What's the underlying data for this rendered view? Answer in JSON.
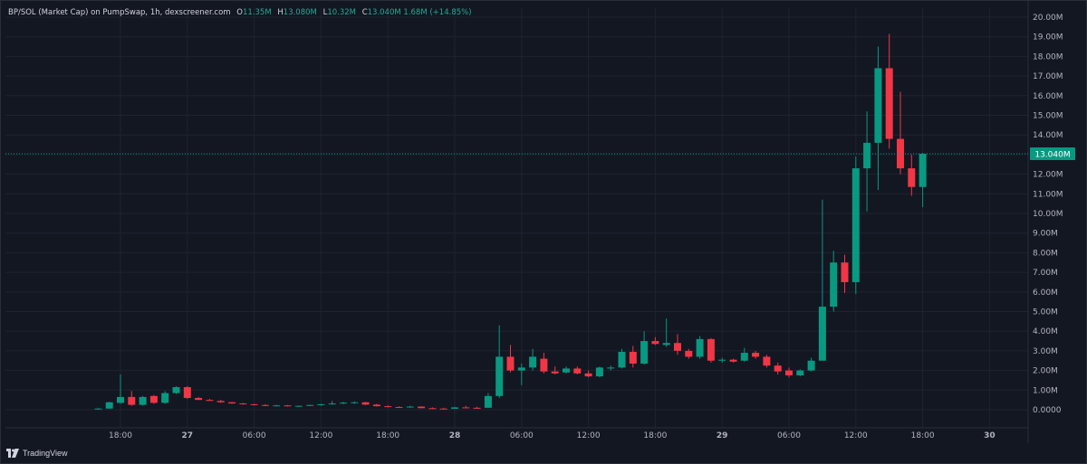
{
  "legend": {
    "symbol": "BP/SOL (Market Cap) on PumpSwap, 1h, dexscreener.com",
    "o_label": "O",
    "o_value": "11.35M",
    "h_label": "H",
    "h_value": "13.080M",
    "l_label": "L",
    "l_value": "10.32M",
    "c_label": "C",
    "c_value": "13.040M",
    "change": "1.68M (+14.85%)"
  },
  "brand": {
    "name": "TradingView"
  },
  "price_badge": "13.040M",
  "colors": {
    "up": "#089981",
    "down": "#f23645",
    "background": "#131722",
    "badge": "#089981"
  },
  "chart_data": {
    "type": "candlestick",
    "interval": "1h",
    "y_unit": "market cap",
    "ylim": [
      0,
      20
    ],
    "y_ticks": [
      {
        "v": 20,
        "label": "20.00M"
      },
      {
        "v": 19,
        "label": "19.00M"
      },
      {
        "v": 18,
        "label": "18.00M"
      },
      {
        "v": 17,
        "label": "17.00M"
      },
      {
        "v": 16,
        "label": "16.00M"
      },
      {
        "v": 15,
        "label": "15.00M"
      },
      {
        "v": 14,
        "label": "14.00M"
      },
      {
        "v": 13,
        "label": "13.00M"
      },
      {
        "v": 12,
        "label": "12.00M"
      },
      {
        "v": 11,
        "label": "11.00M"
      },
      {
        "v": 10,
        "label": "10.00M"
      },
      {
        "v": 9,
        "label": "9.00M"
      },
      {
        "v": 8,
        "label": "8.00M"
      },
      {
        "v": 7,
        "label": "7.00M"
      },
      {
        "v": 6,
        "label": "6.00M"
      },
      {
        "v": 5,
        "label": "5.00M"
      },
      {
        "v": 4,
        "label": "4.00M"
      },
      {
        "v": 3,
        "label": "3.00M"
      },
      {
        "v": 2,
        "label": "2.00M"
      },
      {
        "v": 1,
        "label": "1.00M"
      },
      {
        "v": 0,
        "label": "0.0000"
      }
    ],
    "x_ticks": [
      {
        "t": 0,
        "label": "18:00",
        "bold": false
      },
      {
        "t": 6,
        "label": "27",
        "bold": true
      },
      {
        "t": 12,
        "label": "06:00",
        "bold": false
      },
      {
        "t": 18,
        "label": "12:00",
        "bold": false
      },
      {
        "t": 24,
        "label": "18:00",
        "bold": false
      },
      {
        "t": 30,
        "label": "28",
        "bold": true
      },
      {
        "t": 36,
        "label": "06:00",
        "bold": false
      },
      {
        "t": 42,
        "label": "12:00",
        "bold": false
      },
      {
        "t": 48,
        "label": "18:00",
        "bold": false
      },
      {
        "t": 54,
        "label": "29",
        "bold": true
      },
      {
        "t": 60,
        "label": "06:00",
        "bold": false
      },
      {
        "t": 66,
        "label": "12:00",
        "bold": false
      },
      {
        "t": 72,
        "label": "18:00",
        "bold": false
      },
      {
        "t": 78,
        "label": "30",
        "bold": true
      }
    ],
    "x_range": [
      -3,
      84
    ],
    "last_close": 13.04,
    "candles": [
      {
        "t": -2,
        "o": 0.05,
        "h": 0.1,
        "l": 0.04,
        "c": 0.06
      },
      {
        "t": -1,
        "o": 0.06,
        "h": 0.4,
        "l": 0.05,
        "c": 0.38
      },
      {
        "t": 0,
        "o": 0.35,
        "h": 1.8,
        "l": 0.3,
        "c": 0.65
      },
      {
        "t": 1,
        "o": 0.65,
        "h": 0.95,
        "l": 0.2,
        "c": 0.25
      },
      {
        "t": 2,
        "o": 0.25,
        "h": 0.7,
        "l": 0.2,
        "c": 0.65
      },
      {
        "t": 3,
        "o": 0.7,
        "h": 0.75,
        "l": 0.3,
        "c": 0.35
      },
      {
        "t": 4,
        "o": 0.35,
        "h": 0.95,
        "l": 0.3,
        "c": 0.85
      },
      {
        "t": 5,
        "o": 0.85,
        "h": 1.2,
        "l": 0.8,
        "c": 1.15
      },
      {
        "t": 6,
        "o": 1.15,
        "h": 1.2,
        "l": 0.55,
        "c": 0.6
      },
      {
        "t": 7,
        "o": 0.6,
        "h": 0.65,
        "l": 0.5,
        "c": 0.5
      },
      {
        "t": 8,
        "o": 0.5,
        "h": 0.55,
        "l": 0.45,
        "c": 0.45
      },
      {
        "t": 9,
        "o": 0.45,
        "h": 0.5,
        "l": 0.35,
        "c": 0.38
      },
      {
        "t": 10,
        "o": 0.38,
        "h": 0.4,
        "l": 0.3,
        "c": 0.32
      },
      {
        "t": 11,
        "o": 0.32,
        "h": 0.35,
        "l": 0.26,
        "c": 0.28
      },
      {
        "t": 12,
        "o": 0.28,
        "h": 0.3,
        "l": 0.22,
        "c": 0.24
      },
      {
        "t": 13,
        "o": 0.24,
        "h": 0.28,
        "l": 0.18,
        "c": 0.2
      },
      {
        "t": 14,
        "o": 0.2,
        "h": 0.25,
        "l": 0.17,
        "c": 0.22
      },
      {
        "t": 15,
        "o": 0.22,
        "h": 0.24,
        "l": 0.16,
        "c": 0.18
      },
      {
        "t": 16,
        "o": 0.18,
        "h": 0.22,
        "l": 0.15,
        "c": 0.2
      },
      {
        "t": 17,
        "o": 0.2,
        "h": 0.26,
        "l": 0.18,
        "c": 0.24
      },
      {
        "t": 18,
        "o": 0.24,
        "h": 0.3,
        "l": 0.2,
        "c": 0.28
      },
      {
        "t": 19,
        "o": 0.28,
        "h": 0.45,
        "l": 0.25,
        "c": 0.32
      },
      {
        "t": 20,
        "o": 0.32,
        "h": 0.4,
        "l": 0.28,
        "c": 0.36
      },
      {
        "t": 21,
        "o": 0.36,
        "h": 0.42,
        "l": 0.3,
        "c": 0.38
      },
      {
        "t": 22,
        "o": 0.38,
        "h": 0.4,
        "l": 0.24,
        "c": 0.26
      },
      {
        "t": 23,
        "o": 0.26,
        "h": 0.3,
        "l": 0.16,
        "c": 0.18
      },
      {
        "t": 24,
        "o": 0.18,
        "h": 0.22,
        "l": 0.12,
        "c": 0.14
      },
      {
        "t": 25,
        "o": 0.14,
        "h": 0.17,
        "l": 0.1,
        "c": 0.12
      },
      {
        "t": 26,
        "o": 0.12,
        "h": 0.2,
        "l": 0.1,
        "c": 0.16
      },
      {
        "t": 27,
        "o": 0.16,
        "h": 0.18,
        "l": 0.07,
        "c": 0.08
      },
      {
        "t": 28,
        "o": 0.08,
        "h": 0.12,
        "l": 0.05,
        "c": 0.06
      },
      {
        "t": 29,
        "o": 0.06,
        "h": 0.1,
        "l": 0.04,
        "c": 0.05
      },
      {
        "t": 30,
        "o": 0.05,
        "h": 0.15,
        "l": 0.04,
        "c": 0.12
      },
      {
        "t": 31,
        "o": 0.12,
        "h": 0.2,
        "l": 0.08,
        "c": 0.1
      },
      {
        "t": 32,
        "o": 0.1,
        "h": 0.15,
        "l": 0.05,
        "c": 0.08
      },
      {
        "t": 33,
        "o": 0.1,
        "h": 0.85,
        "l": 0.08,
        "c": 0.7
      },
      {
        "t": 34,
        "o": 0.7,
        "h": 4.3,
        "l": 0.6,
        "c": 2.7
      },
      {
        "t": 35,
        "o": 2.7,
        "h": 3.3,
        "l": 1.9,
        "c": 2.0
      },
      {
        "t": 36,
        "o": 2.0,
        "h": 2.35,
        "l": 1.25,
        "c": 2.15
      },
      {
        "t": 37,
        "o": 2.15,
        "h": 3.1,
        "l": 2.0,
        "c": 2.7
      },
      {
        "t": 38,
        "o": 2.6,
        "h": 2.9,
        "l": 1.85,
        "c": 1.95
      },
      {
        "t": 39,
        "o": 1.95,
        "h": 2.2,
        "l": 1.8,
        "c": 1.85
      },
      {
        "t": 40,
        "o": 1.9,
        "h": 2.2,
        "l": 1.85,
        "c": 2.1
      },
      {
        "t": 41,
        "o": 2.1,
        "h": 2.2,
        "l": 1.8,
        "c": 1.85
      },
      {
        "t": 42,
        "o": 1.85,
        "h": 2.0,
        "l": 1.65,
        "c": 1.7
      },
      {
        "t": 43,
        "o": 1.7,
        "h": 2.2,
        "l": 1.65,
        "c": 2.15
      },
      {
        "t": 44,
        "o": 2.1,
        "h": 2.25,
        "l": 2.0,
        "c": 2.15
      },
      {
        "t": 45,
        "o": 2.15,
        "h": 3.1,
        "l": 2.1,
        "c": 2.95
      },
      {
        "t": 46,
        "o": 2.95,
        "h": 3.25,
        "l": 2.15,
        "c": 2.35
      },
      {
        "t": 47,
        "o": 2.35,
        "h": 4.0,
        "l": 2.3,
        "c": 3.5
      },
      {
        "t": 48,
        "o": 3.5,
        "h": 3.7,
        "l": 3.3,
        "c": 3.35
      },
      {
        "t": 49,
        "o": 3.3,
        "h": 4.65,
        "l": 3.2,
        "c": 3.4
      },
      {
        "t": 50,
        "o": 3.4,
        "h": 3.85,
        "l": 2.8,
        "c": 3.0
      },
      {
        "t": 51,
        "o": 3.0,
        "h": 3.1,
        "l": 2.6,
        "c": 2.7
      },
      {
        "t": 52,
        "o": 2.7,
        "h": 3.75,
        "l": 2.6,
        "c": 3.6
      },
      {
        "t": 53,
        "o": 3.6,
        "h": 3.65,
        "l": 2.4,
        "c": 2.5
      },
      {
        "t": 54,
        "o": 2.5,
        "h": 2.65,
        "l": 2.4,
        "c": 2.55
      },
      {
        "t": 55,
        "o": 2.55,
        "h": 2.6,
        "l": 2.4,
        "c": 2.45
      },
      {
        "t": 56,
        "o": 2.5,
        "h": 3.15,
        "l": 2.45,
        "c": 2.9
      },
      {
        "t": 57,
        "o": 2.9,
        "h": 3.0,
        "l": 2.6,
        "c": 2.7
      },
      {
        "t": 58,
        "o": 2.7,
        "h": 2.8,
        "l": 2.15,
        "c": 2.25
      },
      {
        "t": 59,
        "o": 2.25,
        "h": 2.4,
        "l": 1.8,
        "c": 1.95
      },
      {
        "t": 60,
        "o": 2.0,
        "h": 2.15,
        "l": 1.65,
        "c": 1.75
      },
      {
        "t": 61,
        "o": 1.75,
        "h": 2.05,
        "l": 1.7,
        "c": 2.0
      },
      {
        "t": 62,
        "o": 2.0,
        "h": 2.65,
        "l": 1.95,
        "c": 2.5
      },
      {
        "t": 63,
        "o": 2.5,
        "h": 10.7,
        "l": 2.5,
        "c": 5.25
      },
      {
        "t": 64,
        "o": 5.25,
        "h": 8.1,
        "l": 5.0,
        "c": 7.5
      },
      {
        "t": 65,
        "o": 7.5,
        "h": 7.9,
        "l": 5.95,
        "c": 6.5
      },
      {
        "t": 66,
        "o": 6.5,
        "h": 12.9,
        "l": 5.9,
        "c": 12.3
      },
      {
        "t": 67,
        "o": 12.3,
        "h": 15.2,
        "l": 10.1,
        "c": 13.6
      },
      {
        "t": 68,
        "o": 13.6,
        "h": 18.5,
        "l": 11.2,
        "c": 17.4
      },
      {
        "t": 69,
        "o": 17.4,
        "h": 19.15,
        "l": 13.3,
        "c": 13.8
      },
      {
        "t": 70,
        "o": 13.8,
        "h": 16.2,
        "l": 12.0,
        "c": 12.3
      },
      {
        "t": 71,
        "o": 12.3,
        "h": 13.0,
        "l": 10.9,
        "c": 11.35
      },
      {
        "t": 72,
        "o": 11.35,
        "h": 13.08,
        "l": 10.32,
        "c": 13.04
      }
    ]
  }
}
